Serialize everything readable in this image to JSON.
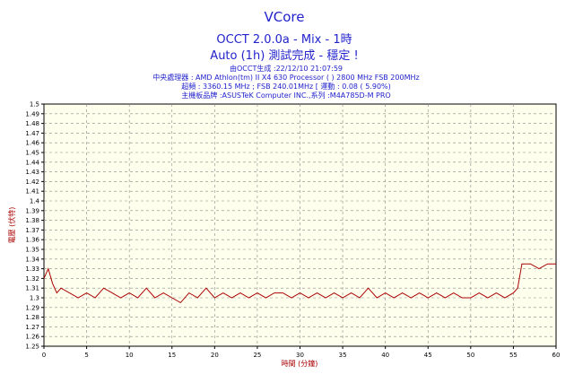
{
  "header": {
    "title": "VCore",
    "subtitle1": "OCCT 2.0.0a - Mix - 1時",
    "subtitle2": "Auto (1h) 測試完成 - 穩定 !",
    "info": [
      "由OCCT生成 :22/12/10 21:07:59",
      "中央處理器 : AMD Athlon(tm) II X4 630 Processor (  ) 2800 MHz FSB 200MHz",
      "超頻 : 3360.15 MHz ; FSB 240.01MHz [ 運動 : 0.08 ( 5.90%)",
      "主機板品牌 :ASUSTeK Computer INC.,系列 :M4A785D-M PRO"
    ]
  },
  "colors": {
    "plot_bg": "#ffffee",
    "line": "#aa0000",
    "grid": "#888888",
    "title": "#2222cc",
    "axis_label": "#aa0000"
  },
  "chart_data": {
    "type": "line",
    "xlabel": "時間 (分鐘)",
    "ylabel": "電壓 (伏特)",
    "xlim": [
      0,
      60
    ],
    "ylim": [
      1.25,
      1.5
    ],
    "x_ticks": [
      0,
      5,
      10,
      15,
      20,
      25,
      30,
      35,
      40,
      45,
      50,
      55,
      60
    ],
    "y_ticks": [
      "1.25",
      "1.26",
      "1.27",
      "1.28",
      "1.29",
      "1.3",
      "1.31",
      "1.32",
      "1.33",
      "1.34",
      "1.35",
      "1.36",
      "1.37",
      "1.38",
      "1.39",
      "1.4",
      "1.41",
      "1.42",
      "1.43",
      "1.44",
      "1.45",
      "1.46",
      "1.47",
      "1.48",
      "1.49",
      "1.5"
    ],
    "grid": true,
    "series": [
      {
        "x": [
          0,
          0.5,
          1,
          1.5,
          2,
          3,
          4,
          5,
          6,
          7,
          8,
          9,
          10,
          11,
          12,
          13,
          14,
          15,
          16,
          17,
          18,
          19,
          20,
          21,
          22,
          23,
          24,
          25,
          26,
          27,
          28,
          29,
          30,
          31,
          32,
          33,
          34,
          35,
          36,
          37,
          38,
          39,
          40,
          41,
          42,
          43,
          44,
          45,
          46,
          47,
          48,
          49,
          50,
          51,
          52,
          53,
          54,
          55,
          55.5,
          56,
          57,
          58,
          59,
          60
        ],
        "values": [
          1.32,
          1.33,
          1.315,
          1.305,
          1.31,
          1.305,
          1.3,
          1.305,
          1.3,
          1.31,
          1.305,
          1.3,
          1.305,
          1.3,
          1.31,
          1.3,
          1.305,
          1.3,
          1.295,
          1.305,
          1.3,
          1.31,
          1.3,
          1.305,
          1.3,
          1.305,
          1.3,
          1.305,
          1.3,
          1.305,
          1.305,
          1.3,
          1.305,
          1.3,
          1.305,
          1.3,
          1.305,
          1.3,
          1.305,
          1.3,
          1.31,
          1.3,
          1.305,
          1.3,
          1.305,
          1.3,
          1.305,
          1.3,
          1.305,
          1.3,
          1.305,
          1.3,
          1.3,
          1.305,
          1.3,
          1.305,
          1.3,
          1.305,
          1.31,
          1.335,
          1.335,
          1.33,
          1.335,
          1.335
        ]
      }
    ]
  }
}
